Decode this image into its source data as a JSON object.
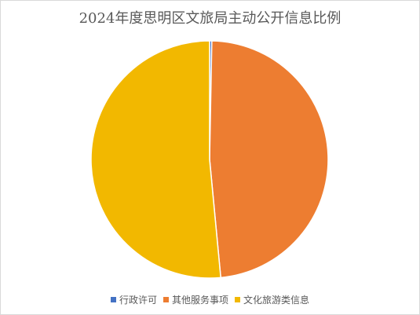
{
  "chart_data": {
    "type": "pie",
    "title": "2024年度思明区文旅局主动公开信息比例",
    "categories": [
      "行政许可",
      "其他服务事项",
      "文化旅游类信息"
    ],
    "values": [
      0.3,
      48.2,
      51.5
    ],
    "colors": [
      "#4472c4",
      "#ed7d31",
      "#f2b800"
    ],
    "legend_position": "bottom"
  }
}
